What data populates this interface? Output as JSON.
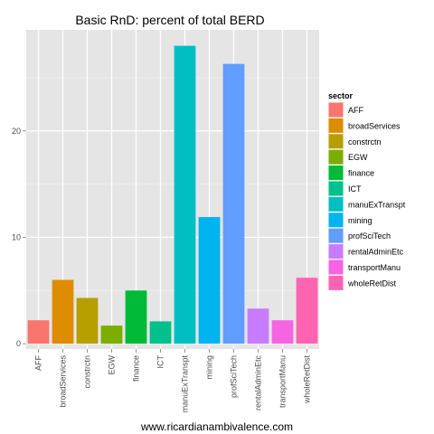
{
  "chart_data": {
    "type": "bar",
    "title": "Basic RnD: percent of total BERD",
    "xlabel": "",
    "ylabel": "",
    "categories": [
      "AFF",
      "broadServices",
      "constrctn",
      "EGW",
      "finance",
      "ICT",
      "manuExTranspt",
      "mining",
      "profSciTech",
      "rentalAdminEtc",
      "transportManu",
      "wholeRetDist"
    ],
    "values": [
      2.2,
      6.0,
      4.3,
      1.7,
      5.0,
      2.1,
      28.0,
      11.9,
      26.3,
      3.3,
      2.2,
      6.2
    ],
    "colors": [
      "#F8766D",
      "#DE8C00",
      "#B79F00",
      "#7CAE00",
      "#00BA38",
      "#00C08B",
      "#00BFC4",
      "#00B4F0",
      "#619CFF",
      "#C77CFF",
      "#F564E3",
      "#FF64B0"
    ],
    "ylim": [
      -0.5,
      29.5
    ],
    "yticks": [
      0,
      10,
      20
    ],
    "grid": true,
    "legend": {
      "title": "sector",
      "placement": "right"
    },
    "caption": "www.ricardianambivalence.com"
  }
}
